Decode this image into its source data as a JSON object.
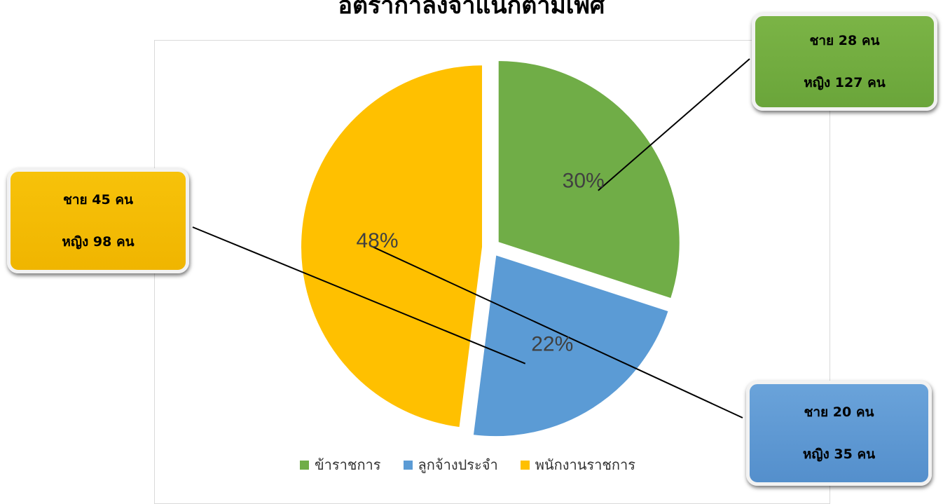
{
  "chart_data": {
    "type": "pie",
    "title": "อัตรากำลังจำแนกตามเพศ",
    "slices": [
      {
        "label": "ข้าราชการ",
        "value": 30,
        "value_label": "30%",
        "color": "#70ad47",
        "exploded": true
      },
      {
        "label": "ลูกจ้างประจำ",
        "value": 22,
        "value_label": "22%",
        "color": "#5b9bd5",
        "exploded": true
      },
      {
        "label": "พนักงานราชการ",
        "value": 48,
        "value_label": "48%",
        "color": "#ffc000",
        "exploded": true
      }
    ],
    "legend": {
      "placement": "bottom",
      "items": [
        "ข้าราชการ",
        "ลูกจ้างประจำ",
        "พนักงานราชการ"
      ]
    },
    "annotations": [
      {
        "slice": "ข้าราชการ",
        "line1": "ชาย 28 คน",
        "line2": "หญิง 127 คน"
      },
      {
        "slice": "พนักงานราชการ",
        "line1": "ชาย 45 คน",
        "line2": "หญิง 98 คน"
      },
      {
        "slice": "ลูกจ้างประจำ",
        "line1": "ชาย 20 คน",
        "line2": "หญิง 35 คน"
      }
    ]
  }
}
